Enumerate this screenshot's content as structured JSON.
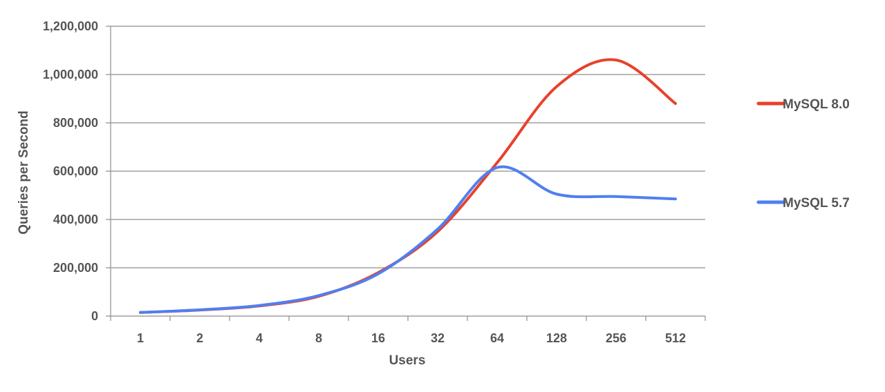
{
  "chart_data": {
    "type": "line",
    "title": "",
    "xlabel": "Users",
    "ylabel": "Queries per Second",
    "categories": [
      "1",
      "2",
      "4",
      "8",
      "16",
      "32",
      "64",
      "128",
      "256",
      "512"
    ],
    "ylim": [
      0,
      1200000
    ],
    "yticks": [
      "0",
      "200,000",
      "400,000",
      "600,000",
      "800,000",
      "1,000,000",
      "1,200,000"
    ],
    "grid": true,
    "legend_position": "right",
    "series": [
      {
        "name": "MySQL 8.0",
        "color": "#e8412c",
        "values": [
          15000,
          25000,
          42000,
          82000,
          180000,
          350000,
          635000,
          950000,
          1060000,
          880000
        ]
      },
      {
        "name": "MySQL 5.7",
        "color": "#4f7ff0",
        "values": [
          15000,
          26000,
          44000,
          85000,
          175000,
          360000,
          615000,
          505000,
          495000,
          485000
        ]
      }
    ]
  }
}
